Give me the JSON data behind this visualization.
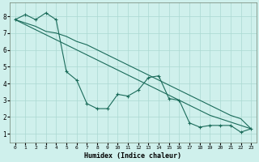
{
  "xlabel": "Humidex (Indice chaleur)",
  "background_color": "#cff0ec",
  "grid_color": "#aad8d2",
  "line_color": "#1a6b5a",
  "xlim": [
    -0.5,
    23.5
  ],
  "ylim": [
    0.5,
    8.8
  ],
  "xticks": [
    0,
    1,
    2,
    3,
    4,
    5,
    6,
    7,
    8,
    9,
    10,
    11,
    12,
    13,
    14,
    15,
    16,
    17,
    18,
    19,
    20,
    21,
    22,
    23
  ],
  "yticks": [
    1,
    2,
    3,
    4,
    5,
    6,
    7,
    8
  ],
  "line1_x": [
    0,
    1,
    2,
    3,
    4,
    5,
    6,
    7,
    8,
    9,
    10,
    11,
    12,
    13,
    14,
    15,
    16,
    17,
    18,
    19,
    20,
    21,
    22,
    23
  ],
  "line1_y": [
    7.8,
    8.1,
    7.8,
    8.2,
    7.8,
    4.7,
    4.2,
    2.8,
    2.5,
    2.5,
    3.35,
    3.25,
    3.6,
    4.35,
    4.45,
    3.1,
    3.0,
    1.65,
    1.4,
    1.5,
    1.5,
    1.5,
    1.1,
    1.3
  ],
  "line2_x": [
    0,
    1,
    2,
    3,
    4,
    5,
    6,
    7,
    8,
    9,
    10,
    11,
    12,
    13,
    14,
    15,
    16,
    17,
    18,
    19,
    20,
    21,
    22,
    23
  ],
  "line2_y": [
    7.8,
    7.5,
    7.2,
    6.9,
    6.6,
    6.3,
    6.0,
    5.7,
    5.4,
    5.1,
    4.8,
    4.5,
    4.2,
    3.9,
    3.6,
    3.3,
    3.0,
    2.7,
    2.4,
    2.1,
    1.9,
    1.7,
    1.5,
    1.3
  ],
  "line3_x": [
    0,
    1,
    2,
    3,
    4,
    5,
    6,
    7,
    8,
    9,
    10,
    11,
    12,
    13,
    14,
    15,
    16,
    17,
    18,
    19,
    20,
    21,
    22,
    23
  ],
  "line3_y": [
    7.8,
    7.6,
    7.4,
    7.1,
    7.0,
    6.8,
    6.5,
    6.3,
    6.0,
    5.7,
    5.4,
    5.1,
    4.8,
    4.5,
    4.2,
    3.9,
    3.6,
    3.3,
    3.0,
    2.7,
    2.4,
    2.1,
    1.9,
    1.3
  ]
}
